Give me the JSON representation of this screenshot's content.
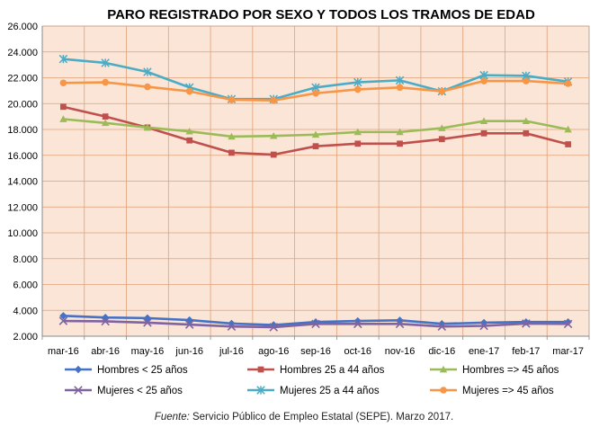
{
  "chart_data": {
    "type": "line",
    "title": "PARO REGISTRADO POR SEXO Y  TODOS LOS TRAMOS DE EDAD",
    "xlabel": "",
    "ylabel": "",
    "categories": [
      "mar-16",
      "abr-16",
      "may-16",
      "jun-16",
      "jul-16",
      "ago-16",
      "sep-16",
      "oct-16",
      "nov-16",
      "dic-16",
      "ene-17",
      "feb-17",
      "mar-17"
    ],
    "ylim": [
      2000,
      26000
    ],
    "yticks": [
      2000,
      4000,
      6000,
      8000,
      10000,
      12000,
      14000,
      16000,
      18000,
      20000,
      22000,
      24000,
      26000
    ],
    "ytick_labels": [
      "2.000",
      "4.000",
      "6.000",
      "8.000",
      "10.000",
      "12.000",
      "14.000",
      "16.000",
      "18.000",
      "20.000",
      "22.000",
      "24.000",
      "26.000"
    ],
    "grid": true,
    "legend_position": "bottom",
    "plot_background": "#fbe5d6",
    "grid_color": "#e0a07a",
    "series": [
      {
        "name": "Hombres < 25 años",
        "color": "#4472c4",
        "marker": "diamond",
        "values": [
          3580,
          3450,
          3400,
          3250,
          2980,
          2870,
          3100,
          3180,
          3230,
          2960,
          3050,
          3100,
          3100
        ]
      },
      {
        "name": "Hombres 25 a 44 años",
        "color": "#c0504d",
        "marker": "square",
        "values": [
          19750,
          19000,
          18150,
          17150,
          16200,
          16050,
          16700,
          16900,
          16900,
          17250,
          17700,
          17700,
          16850
        ]
      },
      {
        "name": "Hombres => 45 años",
        "color": "#9bbb59",
        "marker": "triangle",
        "values": [
          18800,
          18500,
          18150,
          17850,
          17450,
          17500,
          17600,
          17800,
          17800,
          18100,
          18650,
          18650,
          18000
        ]
      },
      {
        "name": "Mujeres < 25 años",
        "color": "#8064a2",
        "marker": "x",
        "values": [
          3180,
          3150,
          3050,
          2900,
          2750,
          2700,
          2950,
          2950,
          2950,
          2750,
          2800,
          2980,
          2950
        ]
      },
      {
        "name": "Mujeres 25 a 44 años",
        "color": "#4bacc6",
        "marker": "star",
        "values": [
          23450,
          23150,
          22450,
          21250,
          20350,
          20350,
          21250,
          21650,
          21800,
          20950,
          22200,
          22150,
          21700
        ]
      },
      {
        "name": "Mujeres => 45 años",
        "color": "#f79646",
        "marker": "circle",
        "values": [
          21600,
          21650,
          21300,
          20950,
          20300,
          20250,
          20800,
          21100,
          21250,
          20950,
          21750,
          21750,
          21550
        ]
      }
    ]
  },
  "source": {
    "label": "Fuente:",
    "text": " Servicio Público de Empleo Estatal (SEPE). Marzo 2017."
  }
}
